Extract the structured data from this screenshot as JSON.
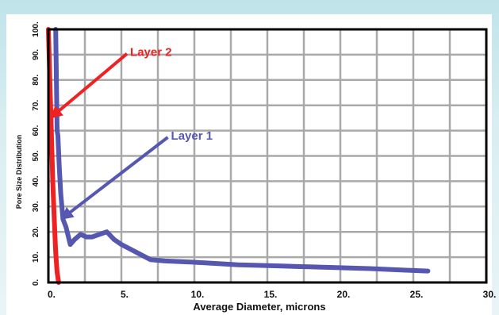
{
  "colors": {
    "panel_background": "#ffffff",
    "grid": "#a9a9a9",
    "frame": "#000000",
    "layer_1": "#5557b0",
    "layer_2": "#ee2222"
  },
  "chart_data": {
    "type": "line",
    "xlabel": "Average Diameter, microns",
    "ylabel": "Pore Size Distribution",
    "xlim": [
      0,
      30
    ],
    "ylim": [
      0,
      100
    ],
    "x_ticks": [
      0,
      5,
      10,
      15,
      20,
      25,
      30
    ],
    "x_tick_labels": [
      "0.",
      "5.",
      "10.",
      "15.",
      "20.",
      "25.",
      "30."
    ],
    "y_ticks": [
      0,
      10,
      20,
      30,
      40,
      50,
      60,
      70,
      80,
      90,
      100
    ],
    "y_tick_labels": [
      "0.",
      "10.",
      "20.",
      "30.",
      "40.",
      "50.",
      "60.",
      "70.",
      "80.",
      "90.",
      "100."
    ],
    "grid": true,
    "series": [
      {
        "name": "Layer 1",
        "color": "#5557b0",
        "x": [
          0.5,
          0.55,
          0.6,
          0.65,
          0.75,
          0.85,
          1.0,
          1.2,
          1.5,
          1.8,
          2.2,
          2.6,
          3.0,
          3.5,
          4.0,
          4.5,
          5.0,
          6.0,
          7.0,
          8.0,
          10.0,
          13.0,
          16.0,
          19.0,
          22.0,
          24.0,
          26.0
        ],
        "y": [
          100,
          80,
          60,
          58,
          45,
          35,
          25,
          22,
          15,
          17,
          19,
          18,
          18,
          19,
          20,
          17,
          15,
          12,
          9,
          8.5,
          8,
          7,
          6.5,
          6,
          5.5,
          5,
          4.5
        ]
      },
      {
        "name": "Layer 2",
        "color": "#ee2222",
        "x": [
          0.0,
          0.05,
          0.1,
          0.15,
          0.2,
          0.25,
          0.3,
          0.4,
          0.5,
          0.6,
          0.7
        ],
        "y": [
          100,
          90,
          80,
          70,
          60,
          50,
          40,
          25,
          12,
          4,
          0
        ]
      }
    ],
    "annotations": [
      {
        "text": "Layer 2",
        "series": "Layer 2",
        "text_x": 5.6,
        "text_y": 91,
        "arrow_x": 0.35,
        "arrow_y": 66
      },
      {
        "text": "Layer 1",
        "series": "Layer 1",
        "text_x": 8.4,
        "text_y": 58,
        "arrow_x": 1.1,
        "arrow_y": 26
      }
    ]
  }
}
